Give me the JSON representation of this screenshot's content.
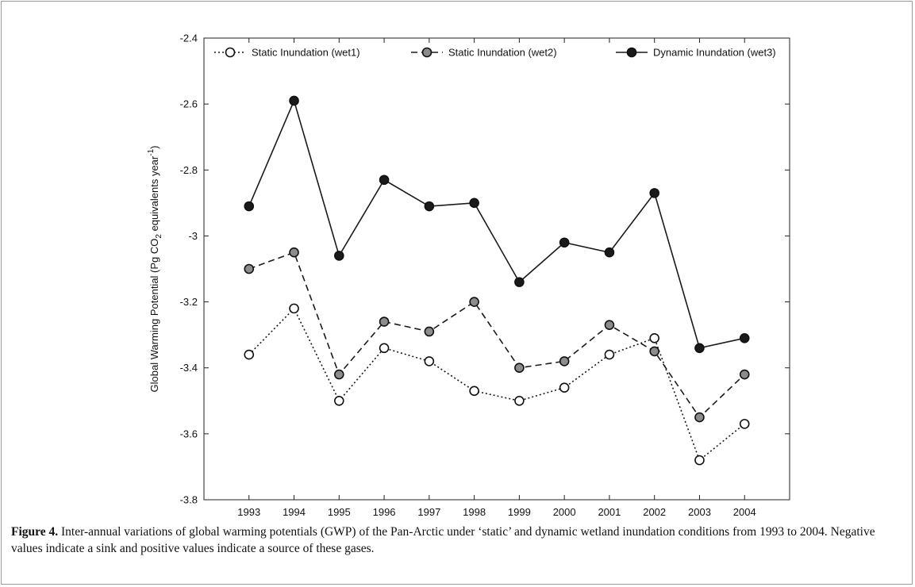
{
  "caption": {
    "label": "Figure 4.",
    "text": " Inter-annual variations of global warming potentials (GWP) of the Pan-Arctic under ‘static’ and dynamic wetland inundation conditions from 1993 to 2004. Negative values indicate a sink and positive values indicate a source of these gases."
  },
  "chart_data": {
    "type": "line",
    "title": "",
    "xlabel": "",
    "ylabel": "Global Warming Potential (Pg CO2 equivalents year-1)",
    "ylabel_parts": {
      "main": "Global Warming Potential (Pg CO",
      "sub": "2",
      "mid": " equivalents year",
      "sup": "-1",
      "end": ")"
    },
    "categories": [
      "1993",
      "1994",
      "1995",
      "1996",
      "1997",
      "1998",
      "1999",
      "2000",
      "2001",
      "2002",
      "2003",
      "2004"
    ],
    "ylim": [
      -3.8,
      -2.4
    ],
    "yticks": [
      -2.4,
      -2.6,
      -2.8,
      -3,
      -3.2,
      -3.4,
      -3.6,
      -3.8
    ],
    "ytick_labels": [
      "-2.4",
      "-2.6",
      "-2.8",
      "-3",
      "-3.2",
      "-3.4",
      "-3.6",
      "-3.8"
    ],
    "grid": false,
    "legend_position": "top",
    "series": [
      {
        "name": "Static Inundation (wet1)",
        "values": [
          -3.36,
          -3.22,
          -3.5,
          -3.34,
          -3.38,
          -3.47,
          -3.5,
          -3.46,
          -3.36,
          -3.31,
          -3.68,
          -3.57
        ],
        "line_style": "dotted",
        "marker_fill": "#ffffff"
      },
      {
        "name": "Static Inundation (wet2)",
        "values": [
          -3.1,
          -3.05,
          -3.42,
          -3.26,
          -3.29,
          -3.2,
          -3.4,
          -3.38,
          -3.27,
          -3.35,
          -3.55,
          -3.42
        ],
        "line_style": "dashed",
        "marker_fill": "#8c8c8c"
      },
      {
        "name": "Dynamic Inundation (wet3)",
        "values": [
          -2.91,
          -2.59,
          -3.06,
          -2.83,
          -2.91,
          -2.9,
          -3.14,
          -3.02,
          -3.05,
          -2.87,
          -3.34,
          -3.31
        ],
        "line_style": "solid",
        "marker_fill": "#1a1a1a"
      }
    ]
  }
}
